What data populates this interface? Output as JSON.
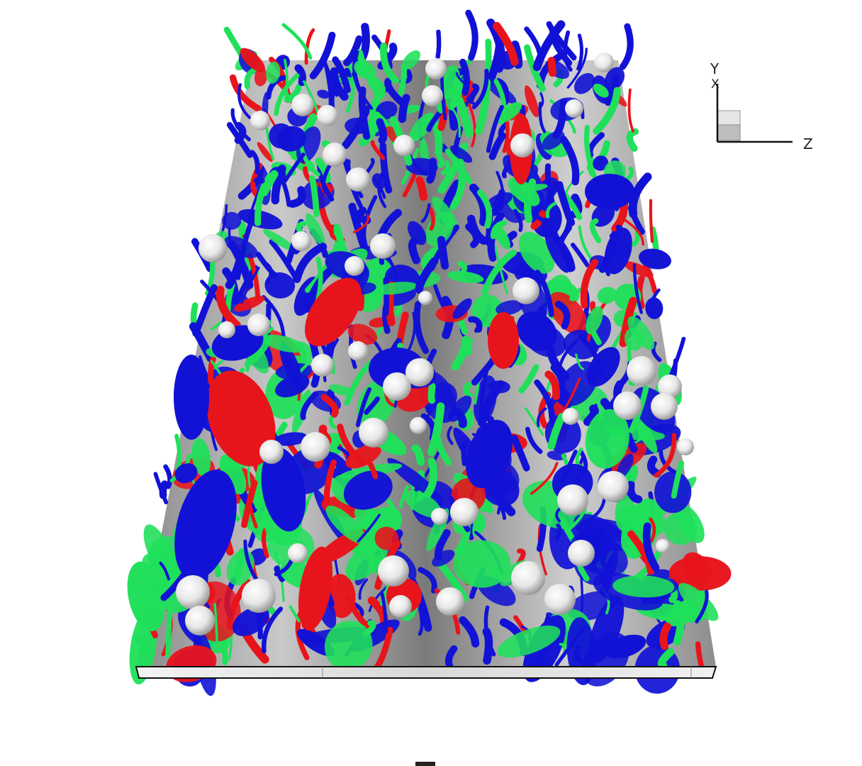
{
  "axes_triad": {
    "y_label": "Y",
    "x_label": "X",
    "z_label": "Z",
    "axis_color": "#111111",
    "cube_fill_light": "#e6e6e6",
    "cube_fill_dark": "#bdbdbd"
  },
  "colors": {
    "background": "#ffffff",
    "vortex_red": "#e8141c",
    "vortex_blue": "#1212d6",
    "vortex_green": "#1fe05a",
    "channel_wall": "#9a9a9a",
    "channel_shadow": "#5e5e5e",
    "particle": "#f2f2f2",
    "particle_shadow": "#9c9c9c",
    "plate_edge": "#111111"
  },
  "scene": {
    "particle_count": 52,
    "structure_count": 900
  }
}
